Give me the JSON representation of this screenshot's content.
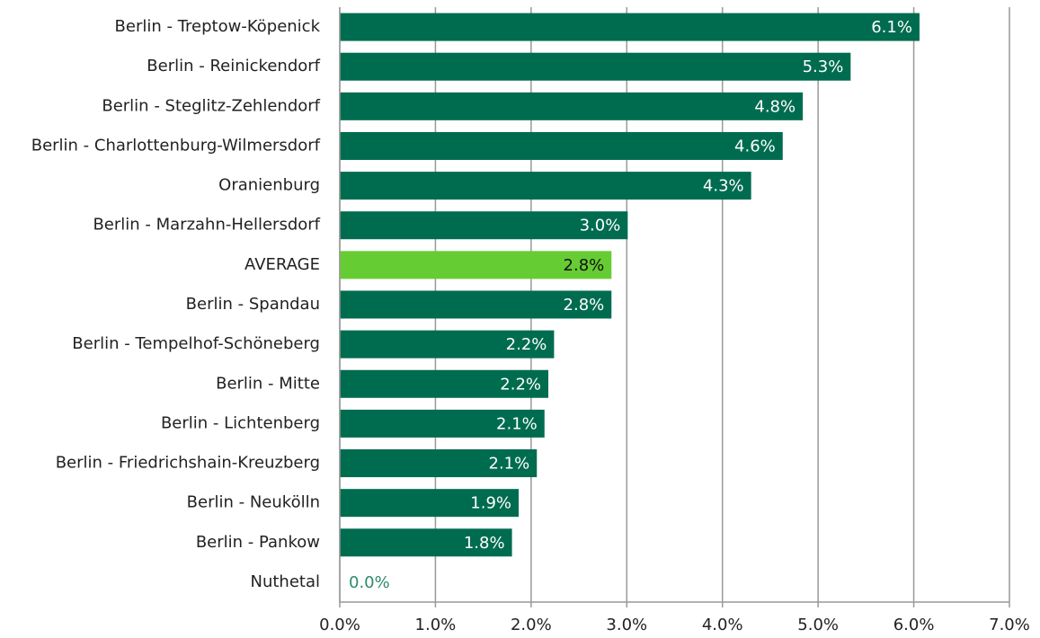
{
  "chart_data": {
    "type": "hbar",
    "categories": [
      "Berlin - Treptow-Köpenick",
      "Berlin - Reinickendorf",
      "Berlin - Steglitz-Zehlendorf",
      "Berlin - Charlottenburg-Wilmersdorf",
      "Oranienburg",
      "Berlin - Marzahn-Hellersdorf",
      "AVERAGE",
      "Berlin - Spandau",
      "Berlin - Tempelhof-Schöneberg",
      "Berlin - Mitte",
      "Berlin - Lichtenberg",
      "Berlin - Friedrichshain-Kreuzberg",
      "Berlin - Neukölln",
      "Berlin - Pankow",
      "Nuthetal"
    ],
    "values": [
      6.06,
      5.34,
      4.84,
      4.63,
      4.3,
      3.01,
      2.84,
      2.84,
      2.24,
      2.18,
      2.14,
      2.06,
      1.87,
      1.8,
      0
    ],
    "value_labels": [
      "6.1%",
      "5.3%",
      "4.8%",
      "4.6%",
      "4.3%",
      "3.0%",
      "2.8%",
      "2.8%",
      "2.2%",
      "2.2%",
      "2.1%",
      "2.1%",
      "1.9%",
      "1.8%",
      "0.0%"
    ],
    "colors": [
      "#006c4f",
      "#006c4f",
      "#006c4f",
      "#006c4f",
      "#006c4f",
      "#006c4f",
      "#66cc33",
      "#006c4f",
      "#006c4f",
      "#006c4f",
      "#006c4f",
      "#006c4f",
      "#006c4f",
      "#006c4f",
      "#006c4f"
    ],
    "xlim": [
      0,
      7
    ],
    "xticks": [
      {
        "value": 0,
        "label": "0.0%"
      },
      {
        "value": 1,
        "label": "1.0%"
      },
      {
        "value": 2,
        "label": "2.0%"
      },
      {
        "value": 3,
        "label": "3.0%"
      },
      {
        "value": 4,
        "label": "4.0%"
      },
      {
        "value": 5,
        "label": "5.0%"
      },
      {
        "value": 6,
        "label": "6.0%"
      },
      {
        "value": 7,
        "label": "7.0%"
      }
    ],
    "grid": true
  }
}
